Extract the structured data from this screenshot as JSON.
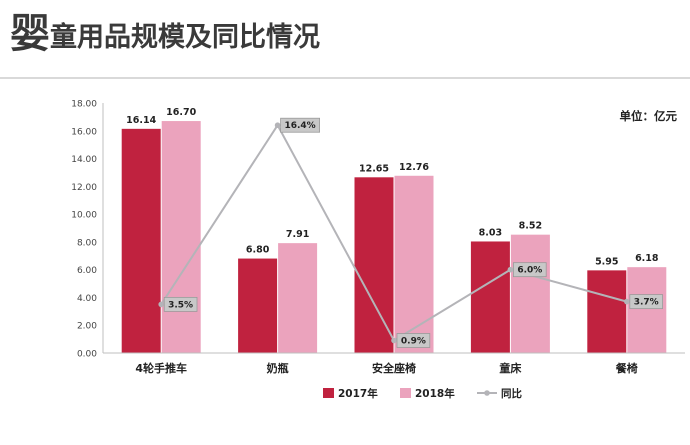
{
  "title": {
    "first_char": "婴",
    "rest": "童用品规模及同比情况"
  },
  "chart_data": {
    "type": "bar",
    "unit_label": "单位：亿元",
    "categories": [
      "4轮手推车",
      "奶瓶",
      "安全座椅",
      "童床",
      "餐椅"
    ],
    "series": [
      {
        "name": "2017年",
        "kind": "bar",
        "color": "#c0223f",
        "values": [
          16.14,
          6.8,
          12.65,
          8.03,
          5.95
        ]
      },
      {
        "name": "2018年",
        "kind": "bar",
        "color": "#eba3bd",
        "values": [
          16.7,
          7.91,
          12.76,
          8.52,
          6.18
        ]
      },
      {
        "name": "同比",
        "kind": "line",
        "color": "#b4b4b8",
        "values": [
          3.5,
          16.4,
          0.9,
          6.0,
          3.7
        ],
        "labels": [
          "3.5%",
          "16.4%",
          "0.9%",
          "6.0%",
          "3.7%"
        ]
      }
    ],
    "y_ticks": [
      "0.00",
      "2.00",
      "4.00",
      "6.00",
      "8.00",
      "10.00",
      "12.00",
      "14.00",
      "16.00",
      "18.00"
    ],
    "ylim": [
      0,
      18
    ],
    "line_ylim": [
      0,
      18
    ],
    "bar_value_labels": [
      [
        "16.14",
        "6.80",
        "12.65",
        "8.03",
        "5.95"
      ],
      [
        "16.70",
        "7.91",
        "12.76",
        "8.52",
        "6.18"
      ]
    ],
    "legend_position": "bottom",
    "grid": false
  }
}
